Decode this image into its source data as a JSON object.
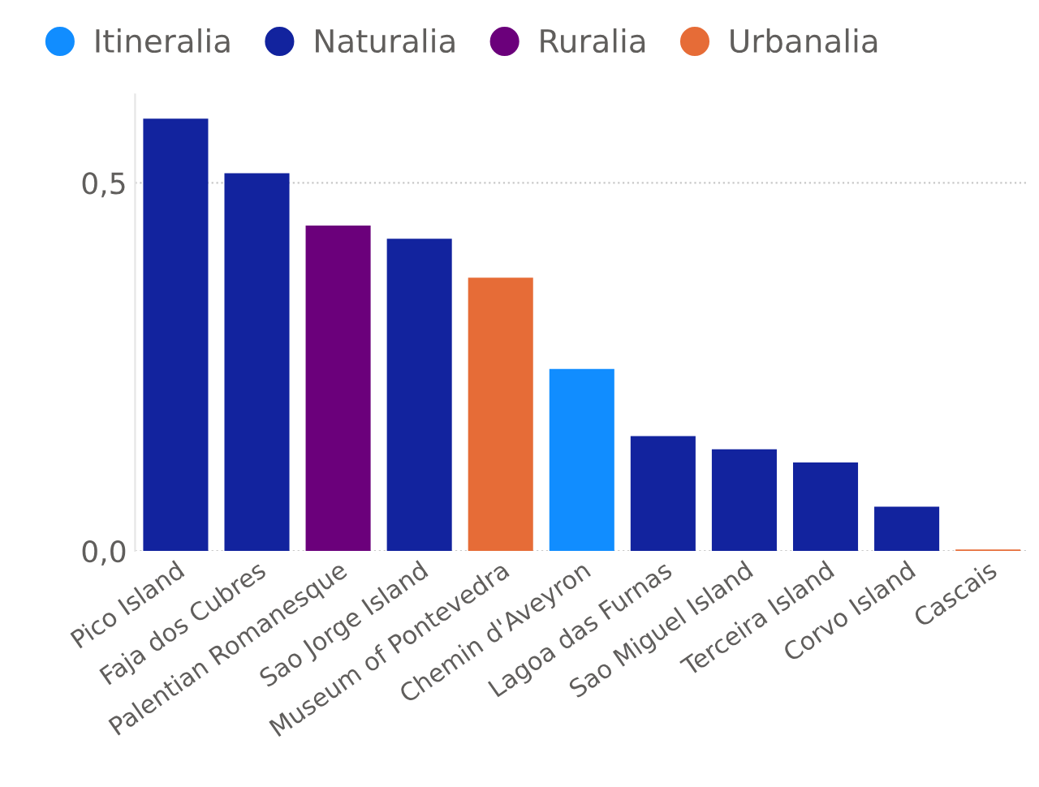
{
  "chart_data": {
    "type": "bar",
    "categories": [
      "Pico Island",
      "Faja dos Cubres",
      "Palentian Romanesque",
      "Sao Jorge Island",
      "Museum of Pontevedra",
      "Chemin d'Aveyron",
      "Lagoa das Furnas",
      "Sao Miguel Island",
      "Terceira Island",
      "Corvo Island",
      "Cascais"
    ],
    "series": [
      {
        "name": "Itineralia",
        "color": "#118dff",
        "values": [
          null,
          null,
          null,
          null,
          null,
          0.247,
          null,
          null,
          null,
          null,
          null
        ]
      },
      {
        "name": "Naturalia",
        "color": "#12239e",
        "values": [
          0.587,
          0.513,
          null,
          0.424,
          null,
          null,
          0.156,
          0.138,
          0.12,
          0.06,
          null
        ]
      },
      {
        "name": "Ruralia",
        "color": "#6b007b",
        "values": [
          null,
          null,
          0.442,
          null,
          null,
          null,
          null,
          null,
          null,
          null,
          null
        ]
      },
      {
        "name": "Urbanalia",
        "color": "#e66c37",
        "values": [
          null,
          null,
          null,
          null,
          0.371,
          null,
          null,
          null,
          null,
          null,
          0.002
        ]
      }
    ],
    "ylim": [
      0,
      0.62
    ],
    "yticks": [
      {
        "value": 0,
        "label": "0,0"
      },
      {
        "value": 0.5,
        "label": "0,5"
      }
    ],
    "grid": "y",
    "legend": "top left"
  }
}
